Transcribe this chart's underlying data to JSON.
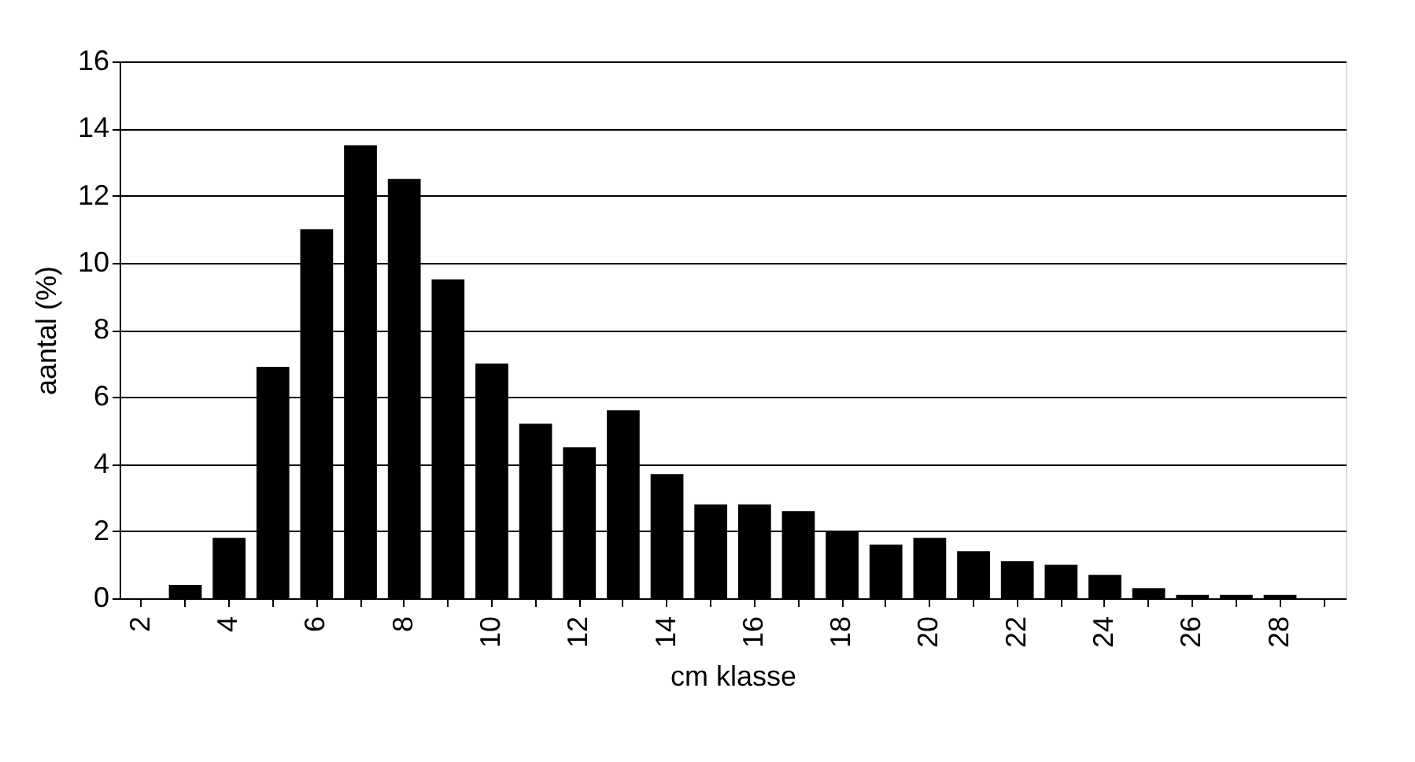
{
  "chart_data": {
    "type": "bar",
    "xlabel": "cm klasse",
    "ylabel": "aantal (%)",
    "categories": [
      "2",
      null,
      "4",
      null,
      "6",
      null,
      "8",
      null,
      "10",
      null,
      "12",
      null,
      "14",
      null,
      "16",
      null,
      "18",
      null,
      "20",
      null,
      "22",
      null,
      "24",
      null,
      "26",
      null,
      "28",
      null
    ],
    "series": [
      {
        "color": "#000000",
        "values": [
          0,
          0.4,
          1.8,
          6.9,
          11.0,
          13.5,
          12.5,
          9.5,
          7.0,
          5.2,
          4.5,
          5.6,
          3.7,
          2.8,
          2.8,
          2.6,
          2.0,
          1.6,
          1.8,
          1.4,
          1.1,
          1.0,
          0.7,
          0.3,
          0.1,
          0.1,
          0.1,
          0
        ]
      }
    ],
    "ylim": [
      0,
      16
    ],
    "yticks": [
      0,
      2,
      4,
      6,
      8,
      10,
      12,
      14,
      16
    ],
    "grid": "y"
  }
}
